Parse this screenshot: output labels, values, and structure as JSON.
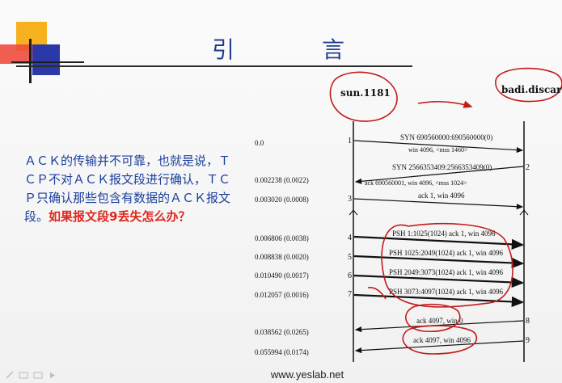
{
  "slide": {
    "title": "引　言",
    "body_part1": "ＡＣＫ的传输并不可靠，也就是说，ＴＣＰ不对ＡＣＫ报文段进行确认，ＴＣＰ只确认那些包含有数据的ＡＣＫ报文段。",
    "body_part2": "如果报文段9丢失怎么办？",
    "footer": "www.yeslab.net"
  },
  "diagram": {
    "hosts": {
      "left": "sun.1181",
      "right": "badi.discard"
    },
    "times": [
      "0.0",
      "0.002238 (0.0022)",
      "0.003020 (0.0008)",
      "0.006806 (0.0038)",
      "0.008838 (0.0020)",
      "0.010490 (0.0017)",
      "0.012057 (0.0016)",
      "0.038562 (0.0265)",
      "0.055994 (0.0174)"
    ],
    "segment_numbers": [
      "1",
      "2",
      "3",
      "4",
      "5",
      "6",
      "7",
      "8",
      "9"
    ],
    "messages": [
      {
        "line1": "SYN 690560000:690560000(0)",
        "line2": "win 4096, <mss 1460>"
      },
      {
        "line1": "SYN 2566353409:2566353409(0)",
        "line2": "ack 690560001, win 4096, <mss 1024>"
      },
      {
        "line1": "ack 1, win 4096"
      },
      {
        "line1": "PSH 1:1025(1024) ack 1, win 4096"
      },
      {
        "line1": "PSH 1025:2049(1024) ack 1, win 4096"
      },
      {
        "line1": "PSH 2049:3073(1024) ack 1, win 4096"
      },
      {
        "line1": "PSH 3073:4097(1024) ack 1, win 4096"
      },
      {
        "line1": "ack 4097, win 0"
      },
      {
        "line1": "ack 4097, win 4096"
      }
    ]
  }
}
